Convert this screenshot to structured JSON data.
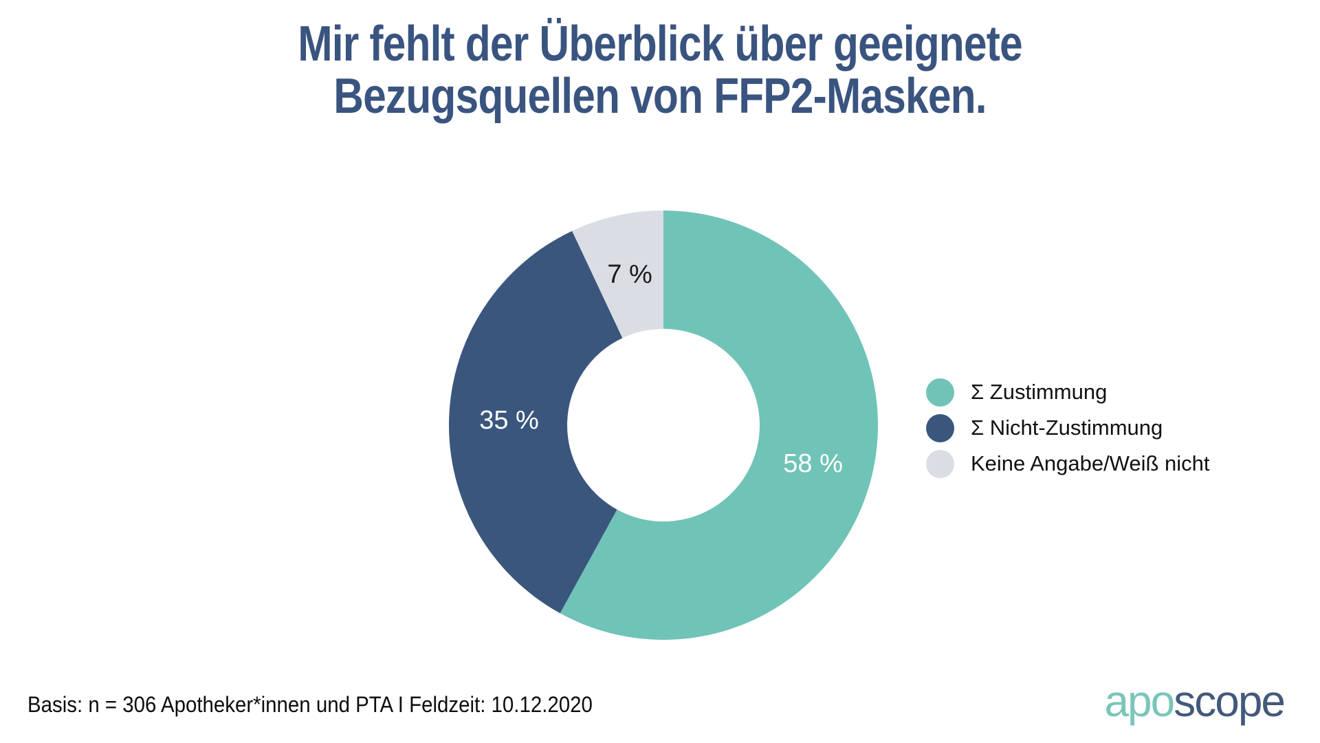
{
  "title": {
    "line1": "Mir fehlt der Überblick über geeignete",
    "line2": "Bezugsquellen von FFP2-Masken."
  },
  "chart_data": {
    "type": "pie",
    "subtype": "donut",
    "title": "Mir fehlt der Überblick über geeignete Bezugsquellen von FFP2-Masken.",
    "unit": "%",
    "direction": "clockwise",
    "start_angle_deg": 0,
    "inner_radius_ratio": 0.45,
    "legend_position": "right",
    "categories": [
      "Σ Zustimmung",
      "Σ Nicht-Zustimmung",
      "Keine Angabe/Weiß nicht"
    ],
    "values": [
      58,
      35,
      7
    ],
    "slices": [
      {
        "key": "zustimmung",
        "label": "Σ Zustimmung",
        "value": 58,
        "display": "58 %",
        "color": "#70C3B7",
        "label_color": "#FFFFFF"
      },
      {
        "key": "nicht-zustimmung",
        "label": "Σ Nicht-Zustimmung",
        "value": 35,
        "display": "35 %",
        "color": "#3A567D",
        "label_color": "#FFFFFF"
      },
      {
        "key": "keine-angabe",
        "label": "Keine Angabe/Weiß nicht",
        "value": 7,
        "display": "7 %",
        "color": "#DADDE4",
        "label_color": "#1A1A1A"
      }
    ]
  },
  "footer": {
    "basis": "Basis: n = 306 Apotheker*innen und PTA I Feldzeit: 10.12.2020"
  },
  "logo": {
    "part1": "apo",
    "part2": "scope",
    "part1_color": "#79C5BA",
    "part2_color": "#43597B"
  },
  "colors": {
    "title": "#3A5480",
    "background": "#FFFFFF"
  }
}
